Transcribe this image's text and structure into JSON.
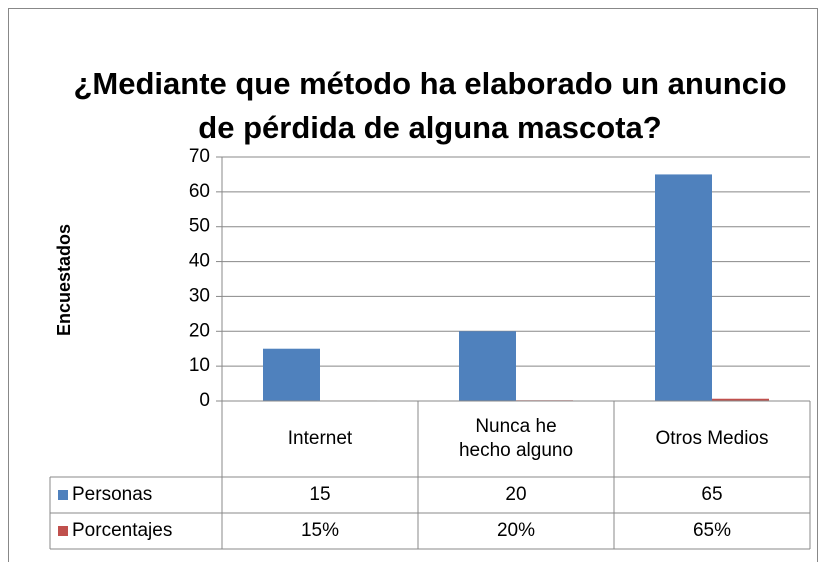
{
  "chart_data": {
    "type": "bar",
    "title": "¿Mediante que método ha elaborado un anuncio de pérdida de alguna mascota?",
    "y_label": "Encuestados",
    "categories": [
      "Internet",
      "Nunca he hecho alguno",
      "Otros Medios"
    ],
    "series": [
      {
        "name": "Personas",
        "color": "#4f81bd",
        "values": [
          15,
          20,
          65
        ]
      },
      {
        "name": "Porcentajes",
        "color": "#c0504d",
        "values": [
          0.15,
          0.2,
          0.65
        ],
        "value_labels": [
          "15%",
          "20%",
          "65%"
        ]
      }
    ],
    "ylim": [
      0,
      70
    ],
    "yticks": [
      0,
      10,
      20,
      30,
      40,
      50,
      60,
      70
    ],
    "grid": true,
    "data_table": true
  }
}
